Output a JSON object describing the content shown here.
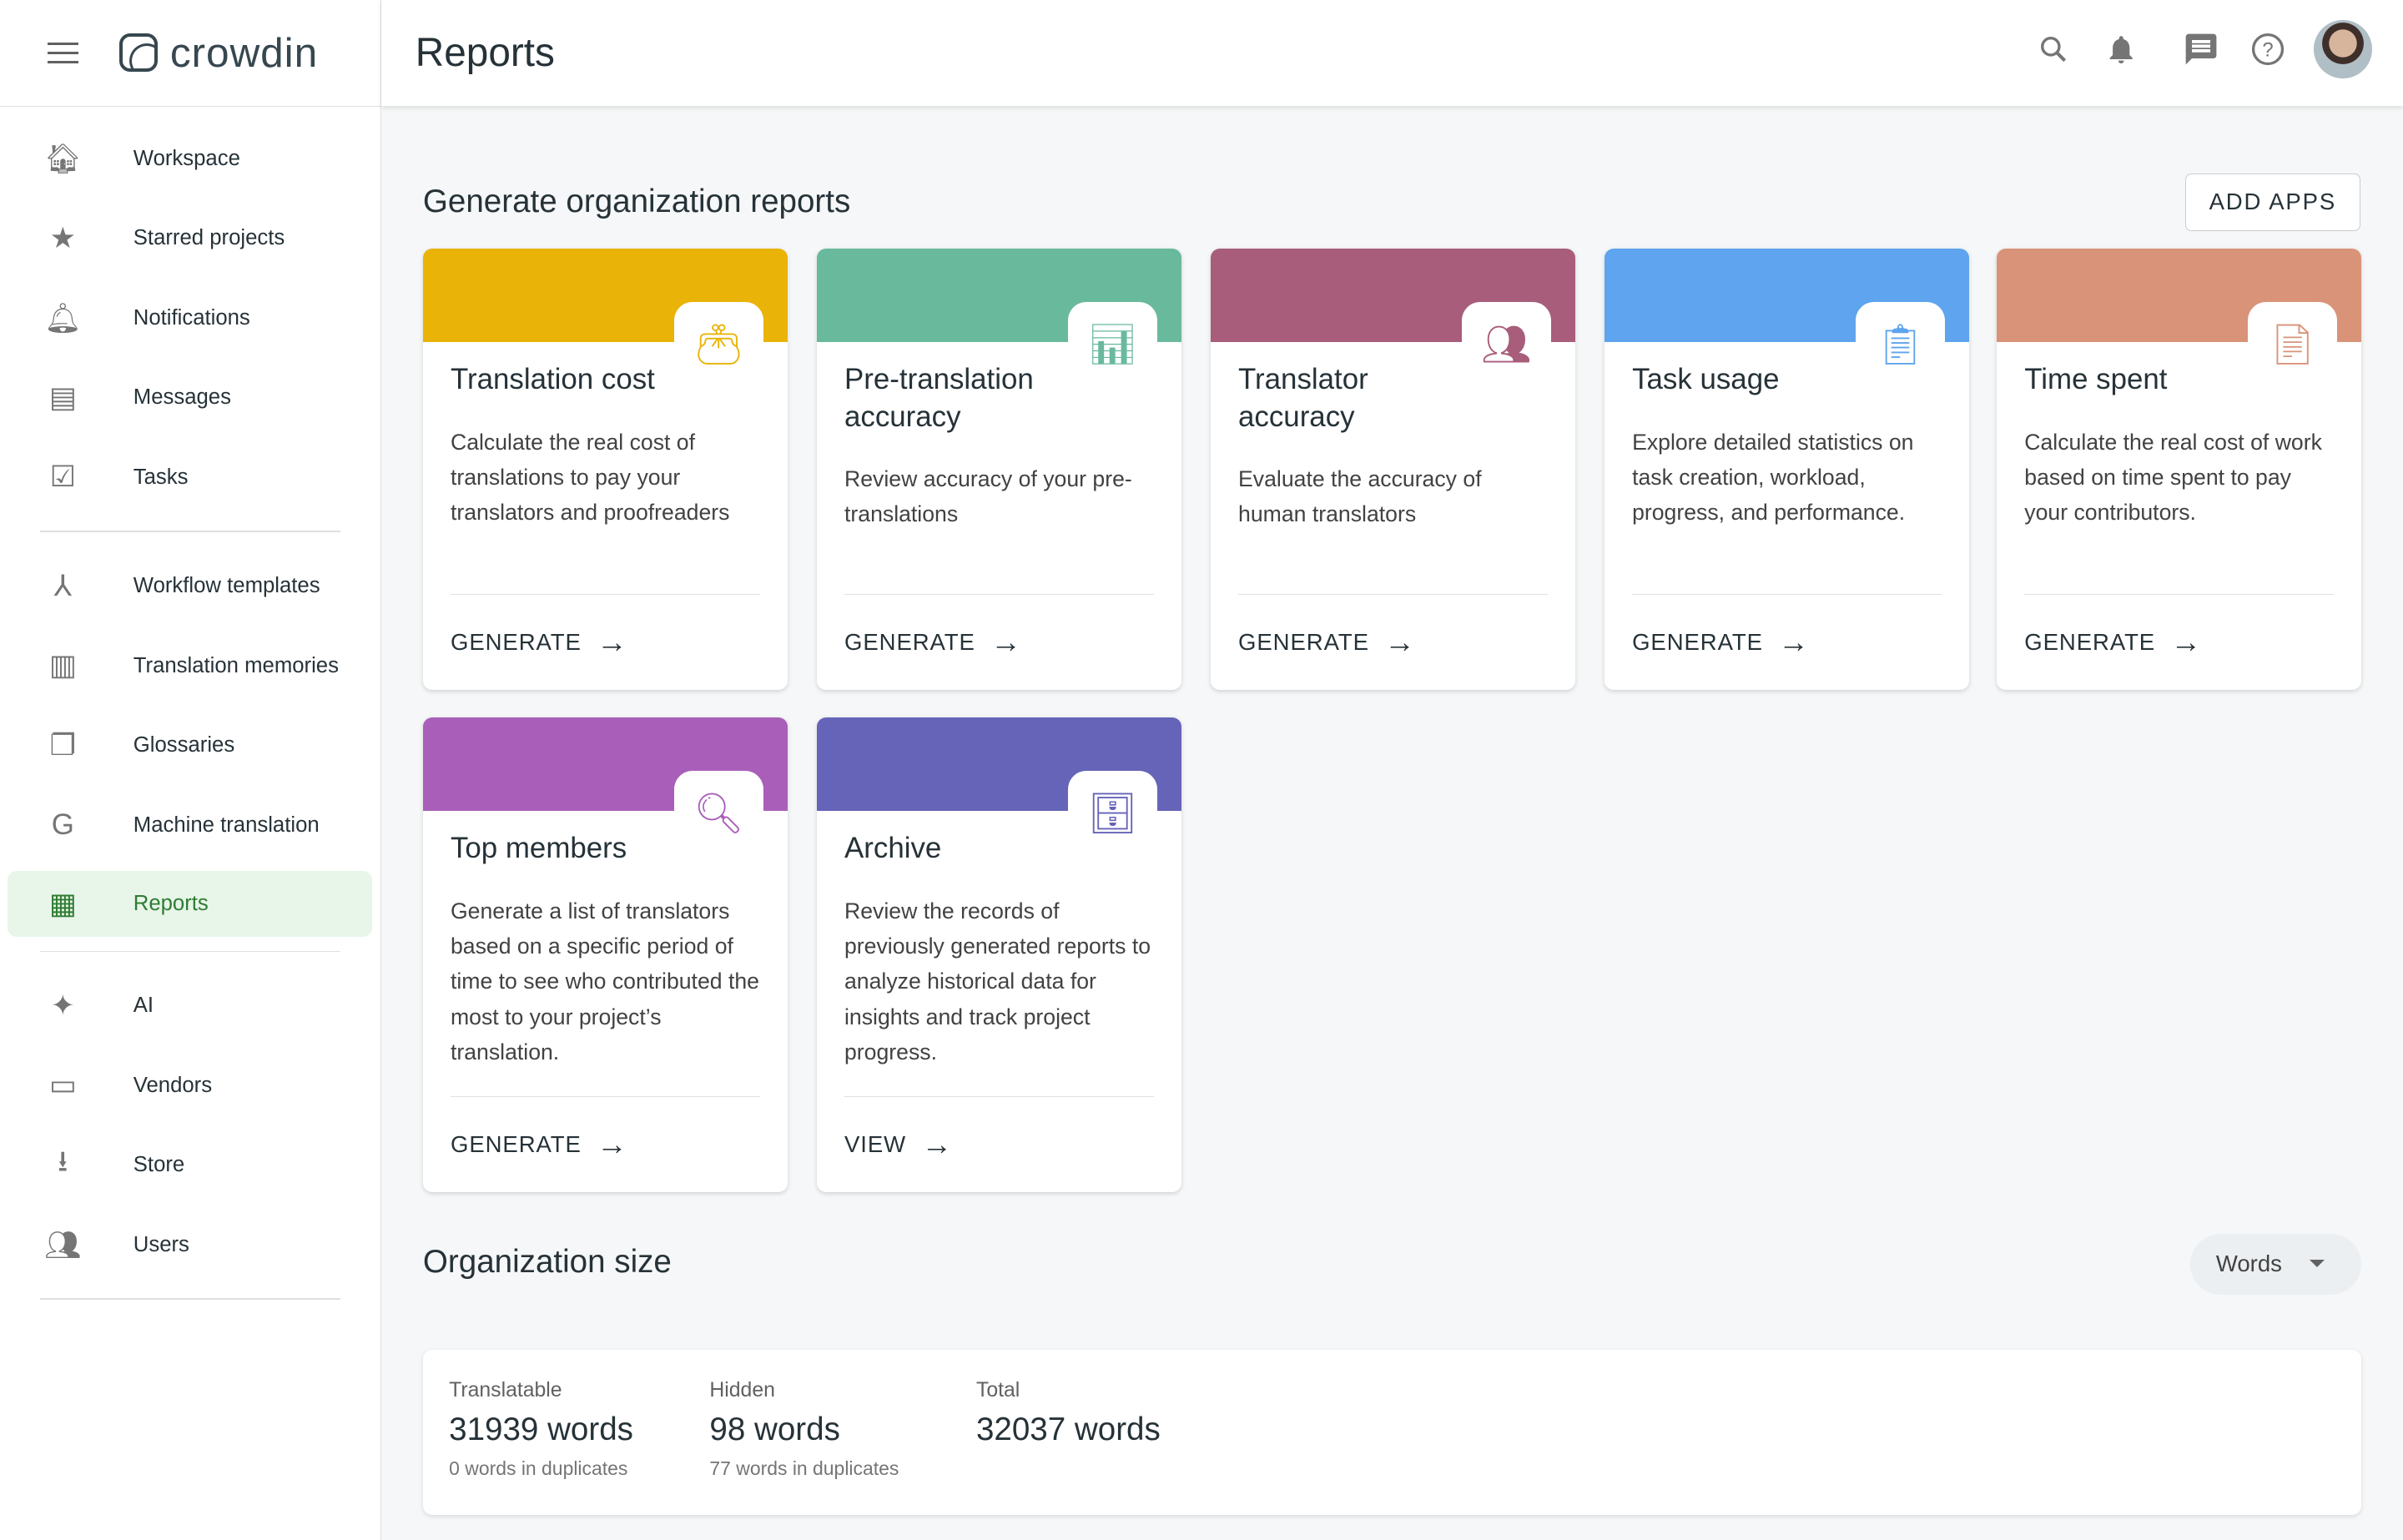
{
  "app": {
    "logo_text": "crowdin"
  },
  "header": {
    "title": "Reports",
    "icons": [
      "search-icon",
      "bell-icon",
      "message-icon",
      "help-icon",
      "avatar"
    ]
  },
  "sidebar": {
    "items": [
      {
        "label": "Workspace",
        "icon": "home-icon"
      },
      {
        "label": "Starred projects",
        "icon": "star-icon"
      },
      {
        "label": "Notifications",
        "icon": "bell-icon"
      },
      {
        "label": "Messages",
        "icon": "message-icon"
      },
      {
        "label": "Tasks",
        "icon": "clipboard-check-icon"
      },
      {
        "label": "Workflow templates",
        "icon": "workflow-icon"
      },
      {
        "label": "Translation memories",
        "icon": "memory-icon"
      },
      {
        "label": "Glossaries",
        "icon": "glossary-icon"
      },
      {
        "label": "Machine translation",
        "icon": "translate-icon"
      },
      {
        "label": "Reports",
        "icon": "calculator-icon",
        "active": true
      },
      {
        "label": "AI",
        "icon": "ai-icon"
      },
      {
        "label": "Vendors",
        "icon": "store-icon"
      },
      {
        "label": "Store",
        "icon": "download-icon"
      },
      {
        "label": "Users",
        "icon": "users-icon"
      }
    ]
  },
  "reports": {
    "title": "Generate organization reports",
    "add_apps": "ADD APPS",
    "cards": [
      {
        "title": "Translation cost",
        "desc": "Calculate the real cost of translations to pay your translators and proofreaders",
        "action": "GENERATE",
        "color": "#e9b308",
        "icon": "wallet-icon"
      },
      {
        "title": "Pre-translation accuracy",
        "desc": "Review accuracy of your pre-translations",
        "action": "GENERATE",
        "color": "#69b99d",
        "icon": "chart-icon"
      },
      {
        "title": "Translator accuracy",
        "desc": "Evaluate the accuracy of human translators",
        "action": "GENERATE",
        "color": "#a85d7b",
        "icon": "people-chart-icon"
      },
      {
        "title": "Task usage",
        "desc": "Explore detailed statistics on task creation, workload, progress, and performance.",
        "action": "GENERATE",
        "color": "#5ea4ef",
        "icon": "clipboard-icon"
      },
      {
        "title": "Time spent",
        "desc": "Calculate the real cost of work based on time spent to pay your contributors.",
        "action": "GENERATE",
        "color": "#d99378",
        "icon": "document-chart-icon"
      },
      {
        "title": "Top members",
        "desc": "Generate a list of translators based on a specific period of time to see who contributed the most to your project’s translation.",
        "action": "GENERATE",
        "color": "#a95fb9",
        "icon": "search-person-icon"
      },
      {
        "title": "Archive",
        "desc": "Review the records of previously generated reports to analyze historical data for insights and track project progress.",
        "action": "VIEW",
        "color": "#6664b8",
        "icon": "archive-icon"
      }
    ]
  },
  "org_size": {
    "title": "Organization size",
    "unit_select": "Words",
    "stats": [
      {
        "label": "Translatable",
        "value": "31939 words",
        "sub": "0 words in duplicates"
      },
      {
        "label": "Hidden",
        "value": "98 words",
        "sub": "77 words in duplicates"
      },
      {
        "label": "Total",
        "value": "32037 words",
        "sub": ""
      }
    ]
  }
}
